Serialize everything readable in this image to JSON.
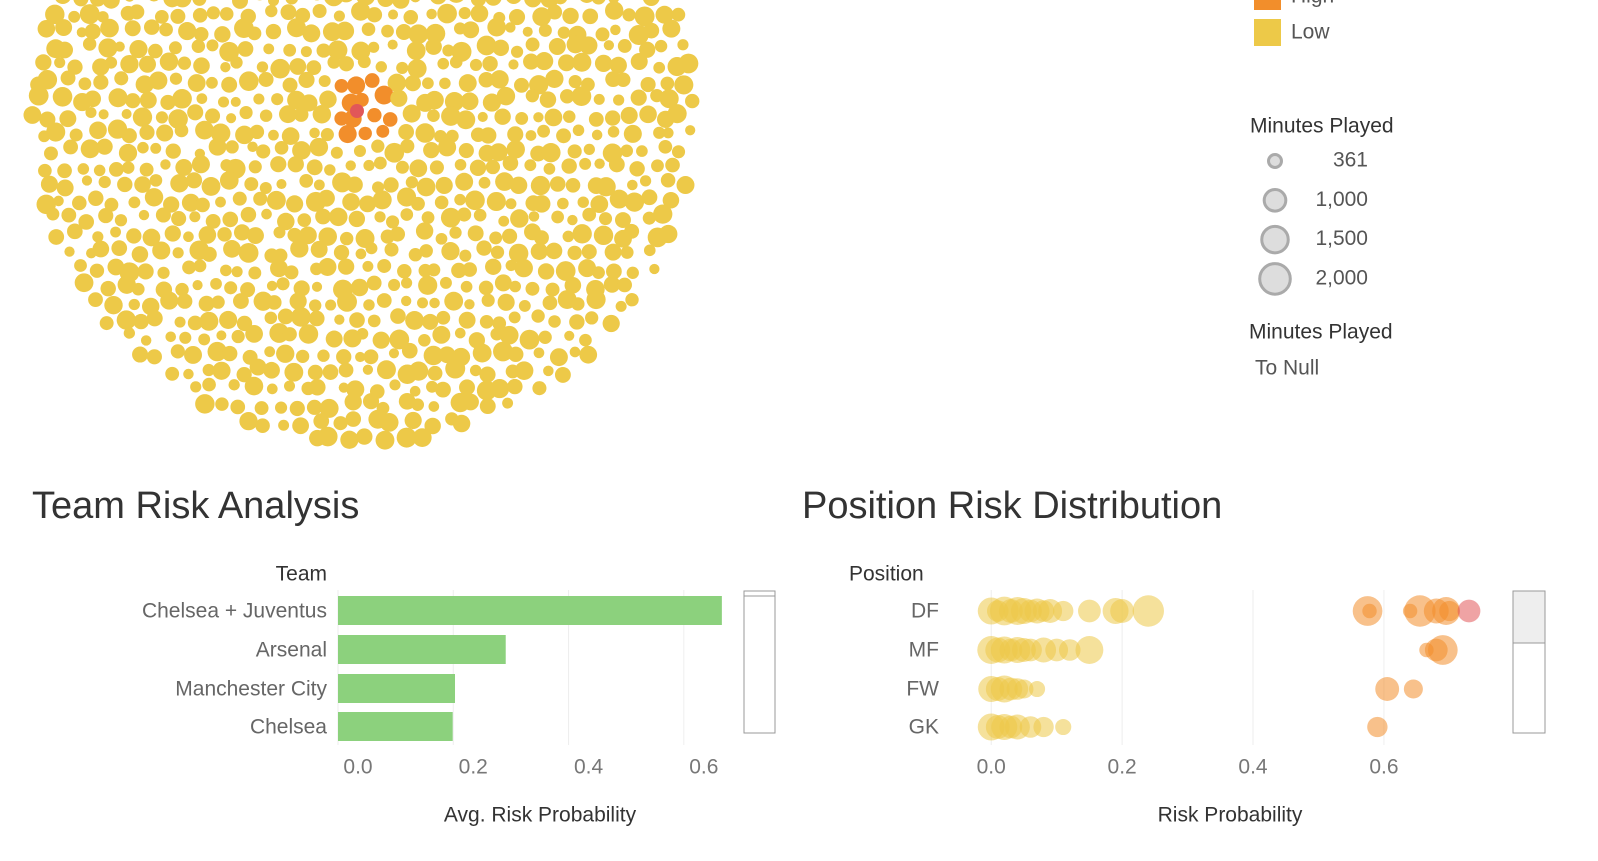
{
  "legend": {
    "items": [
      {
        "name": "High",
        "color": "#f28e2b"
      },
      {
        "name": "Low",
        "color": "#edc948"
      }
    ]
  },
  "size_legend": {
    "title": "Minutes Played",
    "items": [
      361,
      {
        "value": 1000,
        "label": "1,000"
      },
      {
        "value": 1500,
        "label": "1,500"
      },
      {
        "value": 2000,
        "label": "2,000"
      }
    ]
  },
  "filter_legend": {
    "title": "Minutes Played",
    "text": "To Null"
  },
  "chart_data": [
    {
      "type": "bar",
      "title": "Team Risk Analysis",
      "y_label": "Team",
      "x_label": "Avg. Risk Probability",
      "categories": [
        "Chelsea + Juventus",
        "Arsenal",
        "Manchester City",
        "Chelsea"
      ],
      "values": [
        0.666,
        0.291,
        0.203,
        0.199
      ],
      "color": "#8cd17d",
      "xlim": [
        0,
        0.694
      ],
      "xticks": [
        {
          "value": 0,
          "label": "0.0"
        },
        {
          "value": 0.2,
          "label": "0.2"
        },
        {
          "value": 0.4,
          "label": "0.4"
        },
        {
          "value": 0.6,
          "label": "0.6"
        }
      ],
      "grid": true
    },
    {
      "type": "strip",
      "title": "Position Risk Distribution",
      "y_label": "Position",
      "x_label": "Risk Probability",
      "categories": [
        "DF",
        "MF",
        "FW",
        "GK"
      ],
      "xlim": [
        -0.063,
        0.785
      ],
      "xticks": [
        {
          "value": 0,
          "label": "0.0"
        },
        {
          "value": 0.2,
          "label": "0.2"
        },
        {
          "value": 0.4,
          "label": "0.4"
        },
        {
          "value": 0.6,
          "label": "0.6"
        }
      ],
      "grid": true,
      "points": [
        {
          "row": 0,
          "x": 0.0,
          "minutes": 1400,
          "color": "#edc948"
        },
        {
          "row": 0,
          "x": 0.01,
          "minutes": 900,
          "color": "#edc948"
        },
        {
          "row": 0,
          "x": 0.02,
          "minutes": 1600,
          "color": "#edc948"
        },
        {
          "row": 0,
          "x": 0.03,
          "minutes": 1100,
          "color": "#edc948"
        },
        {
          "row": 0,
          "x": 0.04,
          "minutes": 1500,
          "color": "#edc948"
        },
        {
          "row": 0,
          "x": 0.05,
          "minutes": 1300,
          "color": "#edc948"
        },
        {
          "row": 0,
          "x": 0.06,
          "minutes": 1000,
          "color": "#edc948"
        },
        {
          "row": 0,
          "x": 0.07,
          "minutes": 1200,
          "color": "#edc948"
        },
        {
          "row": 0,
          "x": 0.08,
          "minutes": 900,
          "color": "#edc948"
        },
        {
          "row": 0,
          "x": 0.09,
          "minutes": 1100,
          "color": "#edc948"
        },
        {
          "row": 0,
          "x": 0.11,
          "minutes": 800,
          "color": "#edc948"
        },
        {
          "row": 0,
          "x": 0.15,
          "minutes": 1000,
          "color": "#edc948"
        },
        {
          "row": 0,
          "x": 0.19,
          "minutes": 1300,
          "color": "#edc948"
        },
        {
          "row": 0,
          "x": 0.2,
          "minutes": 1100,
          "color": "#edc948"
        },
        {
          "row": 0,
          "x": 0.24,
          "minutes": 1900,
          "color": "#edc948"
        },
        {
          "row": 0,
          "x": 0.575,
          "minutes": 1700,
          "color": "#f28e2b"
        },
        {
          "row": 0,
          "x": 0.578,
          "minutes": 400,
          "color": "#f28e2b"
        },
        {
          "row": 0,
          "x": 0.64,
          "minutes": 400,
          "color": "#f28e2b"
        },
        {
          "row": 0,
          "x": 0.655,
          "minutes": 1900,
          "color": "#f28e2b"
        },
        {
          "row": 0,
          "x": 0.68,
          "minutes": 1200,
          "color": "#f28e2b"
        },
        {
          "row": 0,
          "x": 0.695,
          "minutes": 1500,
          "color": "#f28e2b"
        },
        {
          "row": 0,
          "x": 0.7,
          "minutes": 800,
          "color": "#f28e2b"
        },
        {
          "row": 0,
          "x": 0.73,
          "minutes": 1000,
          "color": "#e15759"
        },
        {
          "row": 1,
          "x": 0.0,
          "minutes": 1500,
          "color": "#edc948"
        },
        {
          "row": 1,
          "x": 0.01,
          "minutes": 1200,
          "color": "#edc948"
        },
        {
          "row": 1,
          "x": 0.02,
          "minutes": 1400,
          "color": "#edc948"
        },
        {
          "row": 1,
          "x": 0.03,
          "minutes": 1000,
          "color": "#edc948"
        },
        {
          "row": 1,
          "x": 0.04,
          "minutes": 1300,
          "color": "#edc948"
        },
        {
          "row": 1,
          "x": 0.05,
          "minutes": 1100,
          "color": "#edc948"
        },
        {
          "row": 1,
          "x": 0.06,
          "minutes": 1000,
          "color": "#edc948"
        },
        {
          "row": 1,
          "x": 0.08,
          "minutes": 1200,
          "color": "#edc948"
        },
        {
          "row": 1,
          "x": 0.1,
          "minutes": 1000,
          "color": "#edc948"
        },
        {
          "row": 1,
          "x": 0.12,
          "minutes": 900,
          "color": "#edc948"
        },
        {
          "row": 1,
          "x": 0.15,
          "minutes": 1500,
          "color": "#edc948"
        },
        {
          "row": 1,
          "x": 0.665,
          "minutes": 400,
          "color": "#f28e2b"
        },
        {
          "row": 1,
          "x": 0.68,
          "minutes": 1000,
          "color": "#f28e2b"
        },
        {
          "row": 1,
          "x": 0.69,
          "minutes": 1700,
          "color": "#f28e2b"
        },
        {
          "row": 2,
          "x": 0.0,
          "minutes": 1300,
          "color": "#edc948"
        },
        {
          "row": 2,
          "x": 0.01,
          "minutes": 1100,
          "color": "#edc948"
        },
        {
          "row": 2,
          "x": 0.02,
          "minutes": 1400,
          "color": "#edc948"
        },
        {
          "row": 2,
          "x": 0.03,
          "minutes": 1000,
          "color": "#edc948"
        },
        {
          "row": 2,
          "x": 0.04,
          "minutes": 900,
          "color": "#edc948"
        },
        {
          "row": 2,
          "x": 0.05,
          "minutes": 700,
          "color": "#edc948"
        },
        {
          "row": 2,
          "x": 0.07,
          "minutes": 500,
          "color": "#edc948"
        },
        {
          "row": 2,
          "x": 0.605,
          "minutes": 1100,
          "color": "#f28e2b"
        },
        {
          "row": 2,
          "x": 0.645,
          "minutes": 700,
          "color": "#f28e2b"
        },
        {
          "row": 3,
          "x": 0.0,
          "minutes": 1400,
          "color": "#edc948"
        },
        {
          "row": 3,
          "x": 0.01,
          "minutes": 1100,
          "color": "#edc948"
        },
        {
          "row": 3,
          "x": 0.02,
          "minutes": 1300,
          "color": "#edc948"
        },
        {
          "row": 3,
          "x": 0.03,
          "minutes": 1000,
          "color": "#edc948"
        },
        {
          "row": 3,
          "x": 0.04,
          "minutes": 1200,
          "color": "#edc948"
        },
        {
          "row": 3,
          "x": 0.06,
          "minutes": 900,
          "color": "#edc948"
        },
        {
          "row": 3,
          "x": 0.08,
          "minutes": 800,
          "color": "#edc948"
        },
        {
          "row": 3,
          "x": 0.11,
          "minutes": 500,
          "color": "#edc948"
        },
        {
          "row": 3,
          "x": 0.59,
          "minutes": 800,
          "color": "#f28e2b"
        }
      ]
    }
  ]
}
